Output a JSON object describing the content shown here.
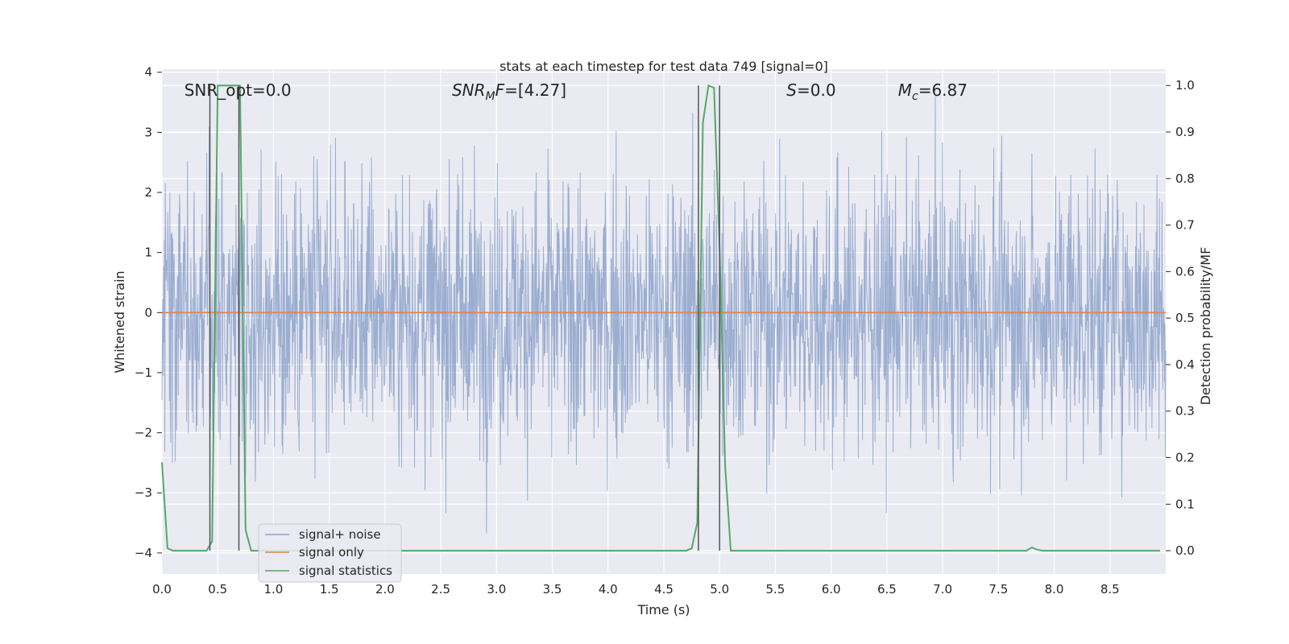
{
  "colors": {
    "background": "#EAEAF2",
    "grid": "#FFFFFF",
    "noise": "#4C72B0",
    "signal_only": "#DD8452",
    "statistics": "#55A868",
    "marker": "#555555"
  },
  "chart_data": {
    "type": "line",
    "title": "stats at each timestep for test data 749 [signal=0]",
    "xlabel": "Time (s)",
    "ylabel": "Whitened strain",
    "y2label": "Detection probability/MF",
    "xlim": [
      0,
      9.0
    ],
    "ylim": [
      -4.35,
      4.05
    ],
    "y2lim": [
      -0.05,
      1.035
    ],
    "xticks": [
      0.0,
      0.5,
      1.0,
      1.5,
      2.0,
      2.5,
      3.0,
      3.5,
      4.0,
      4.5,
      5.0,
      5.5,
      6.0,
      6.5,
      7.0,
      7.5,
      8.0,
      8.5
    ],
    "xtick_labels": [
      "0.0",
      "0.5",
      "1.0",
      "1.5",
      "2.0",
      "2.5",
      "3.0",
      "3.5",
      "4.0",
      "4.5",
      "5.0",
      "5.5",
      "6.0",
      "6.5",
      "7.0",
      "7.5",
      "8.0",
      "8.5"
    ],
    "yticks": [
      -4,
      -3,
      -2,
      -1,
      0,
      1,
      2,
      3,
      4
    ],
    "ytick_labels": [
      "−4",
      "−3",
      "−2",
      "−1",
      "0",
      "1",
      "2",
      "3",
      "4"
    ],
    "y2ticks": [
      0.0,
      0.1,
      0.2,
      0.3,
      0.4,
      0.5,
      0.6,
      0.7,
      0.8,
      0.9,
      1.0
    ],
    "y2tick_labels": [
      "0.0",
      "0.1",
      "0.2",
      "0.3",
      "0.4",
      "0.5",
      "0.6",
      "0.7",
      "0.8",
      "0.9",
      "1.0"
    ],
    "grid": true,
    "legend_position": "lower-left",
    "annotations": [
      {
        "text": "SNR_opt=0.0",
        "x": 0.2,
        "y": 3.7,
        "style": "plain"
      },
      {
        "prefix": "SNR",
        "sub": "M",
        "suffix": "F=[4.27]",
        "x": 2.6,
        "y": 3.7,
        "style": "math"
      },
      {
        "prefix": "S",
        "sub": "",
        "suffix": "=0.0",
        "x": 5.6,
        "y": 3.7,
        "style": "math"
      },
      {
        "prefix": "M",
        "sub": "c",
        "suffix": "=6.87",
        "x": 6.6,
        "y": 3.7,
        "style": "math"
      }
    ],
    "series": [
      {
        "name": "signal+ noise",
        "axis": "left",
        "description": "white-noise strain, fluctuating roughly between -4 and 3.6",
        "x_range": [
          0,
          9.0
        ],
        "amplitude": 1.15,
        "min": -4.0,
        "max": 3.6
      },
      {
        "name": "signal only",
        "axis": "left",
        "x": [
          0,
          9.0
        ],
        "y": [
          0,
          0
        ]
      },
      {
        "name": "signal statistics",
        "axis": "right",
        "x": [
          0.0,
          0.05,
          0.1,
          0.15,
          0.2,
          0.25,
          0.3,
          0.35,
          0.4,
          0.45,
          0.5,
          0.55,
          0.6,
          0.65,
          0.7,
          0.75,
          0.8,
          0.85,
          0.9,
          1.0,
          2.0,
          3.0,
          4.0,
          4.5,
          4.65,
          4.7,
          4.75,
          4.8,
          4.85,
          4.9,
          4.95,
          5.0,
          5.05,
          5.1,
          5.15,
          5.2,
          5.5,
          6.0,
          7.0,
          7.5,
          7.75,
          7.8,
          7.85,
          7.9,
          8.0,
          8.5,
          8.95
        ],
        "y": [
          0.19,
          0.005,
          0.0,
          0.0,
          0.0,
          0.0,
          0.0,
          0.0,
          0.0,
          0.02,
          1.0,
          1.0,
          1.0,
          1.0,
          1.0,
          0.045,
          0.0,
          0.0,
          0.0,
          0.0,
          0.0,
          0.0,
          0.0,
          0.0,
          0.0,
          0.0,
          0.005,
          0.06,
          0.92,
          1.0,
          0.995,
          0.65,
          0.18,
          0.0,
          0.0,
          0.0,
          0.0,
          0.0,
          0.0,
          0.0,
          0.0,
          0.007,
          0.002,
          0.0,
          0.0,
          0.0,
          0.0
        ]
      }
    ],
    "vertical_lines": [
      {
        "x": 0.43,
        "ymin": 0.0,
        "ymax": 1.0
      },
      {
        "x": 0.69,
        "ymin": 0.0,
        "ymax": 1.0
      },
      {
        "x": 4.81,
        "ymin": 0.0,
        "ymax": 1.0
      },
      {
        "x": 5.0,
        "ymin": 0.0,
        "ymax": 1.0
      }
    ]
  }
}
